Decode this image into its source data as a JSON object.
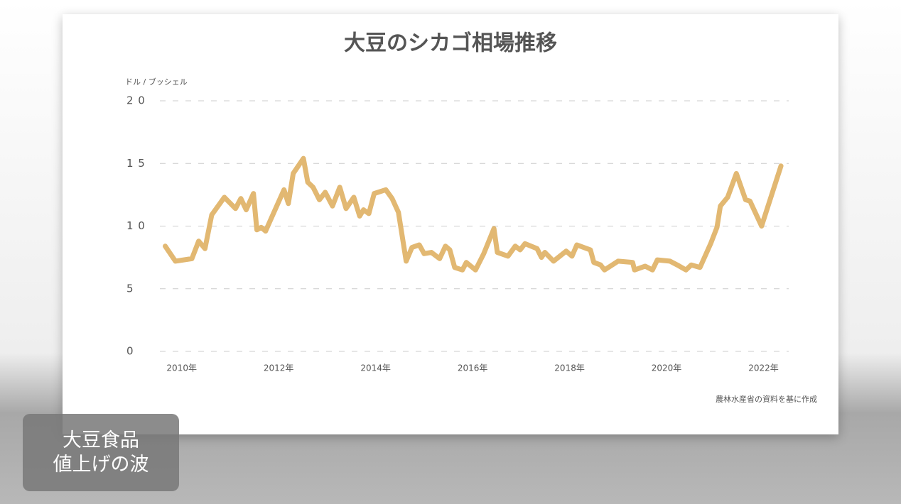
{
  "chart_data": {
    "type": "line",
    "title": "大豆のシカゴ相場推移",
    "y_label": "ドル / ブッシェル",
    "source": "農林水産省の資料を基に作成",
    "x": [
      2009.66,
      2009.87,
      2010.21,
      2010.35,
      2010.48,
      2010.62,
      2010.88,
      2011.11,
      2011.22,
      2011.33,
      2011.48,
      2011.55,
      2011.64,
      2011.73,
      2012.11,
      2012.2,
      2012.3,
      2012.51,
      2012.6,
      2012.71,
      2012.84,
      2012.96,
      2013.11,
      2013.26,
      2013.39,
      2013.55,
      2013.67,
      2013.75,
      2013.86,
      2013.97,
      2014.21,
      2014.34,
      2014.47,
      2014.63,
      2014.75,
      2014.9,
      2015.0,
      2015.15,
      2015.32,
      2015.44,
      2015.53,
      2015.63,
      2015.79,
      2015.87,
      2016.06,
      2016.23,
      2016.44,
      2016.51,
      2016.73,
      2016.88,
      2016.98,
      2017.08,
      2017.33,
      2017.42,
      2017.49,
      2017.67,
      2017.93,
      2018.05,
      2018.15,
      2018.43,
      2018.5,
      2018.64,
      2018.72,
      2019.0,
      2019.3,
      2019.34,
      2019.56,
      2019.71,
      2019.81,
      2020.07,
      2020.22,
      2020.4,
      2020.51,
      2020.69,
      2020.91,
      2021.04,
      2021.11,
      2021.26,
      2021.44,
      2021.63,
      2021.72,
      2021.96,
      2022.36
    ],
    "series": [
      {
        "name": "大豆",
        "color": "#e2b872",
        "values": [
          8.4,
          7.2,
          7.4,
          8.8,
          8.2,
          10.9,
          12.3,
          11.4,
          12.2,
          11.3,
          12.6,
          9.7,
          9.9,
          9.6,
          12.9,
          11.8,
          14.2,
          15.4,
          13.5,
          13.1,
          12.1,
          12.7,
          11.6,
          13.1,
          11.4,
          12.3,
          10.8,
          11.3,
          11.0,
          12.6,
          12.9,
          12.2,
          11.1,
          7.2,
          8.3,
          8.5,
          7.8,
          7.9,
          7.4,
          8.4,
          8.1,
          6.7,
          6.5,
          7.1,
          6.5,
          7.8,
          9.8,
          7.9,
          7.6,
          8.4,
          8.1,
          8.6,
          8.2,
          7.5,
          7.9,
          7.2,
          8.0,
          7.6,
          8.5,
          8.1,
          7.1,
          6.9,
          6.5,
          7.2,
          7.1,
          6.5,
          6.8,
          6.5,
          7.3,
          7.2,
          6.9,
          6.5,
          6.9,
          6.7,
          8.6,
          9.9,
          11.6,
          12.3,
          14.2,
          12.1,
          12.0,
          10.0,
          14.8
        ]
      }
    ],
    "xlim": [
      2009.55,
      2022.52
    ],
    "xticks": [
      {
        "value": 2010,
        "label": "2010年"
      },
      {
        "value": 2012,
        "label": "2012年"
      },
      {
        "value": 2014,
        "label": "2014年"
      },
      {
        "value": 2016,
        "label": "2016年"
      },
      {
        "value": 2018,
        "label": "2018年"
      },
      {
        "value": 2020,
        "label": "2020年"
      },
      {
        "value": 2022,
        "label": "2022年"
      }
    ],
    "ylim": [
      0,
      20
    ],
    "yticks": [
      0,
      5,
      {
        "value": 10,
        "label": "1 0"
      },
      {
        "value": 15,
        "label": "1 5"
      },
      {
        "value": 20,
        "label": "2 0"
      }
    ],
    "grid": true
  },
  "caption": {
    "lines": [
      "大豆食品",
      "値上げの波"
    ]
  }
}
